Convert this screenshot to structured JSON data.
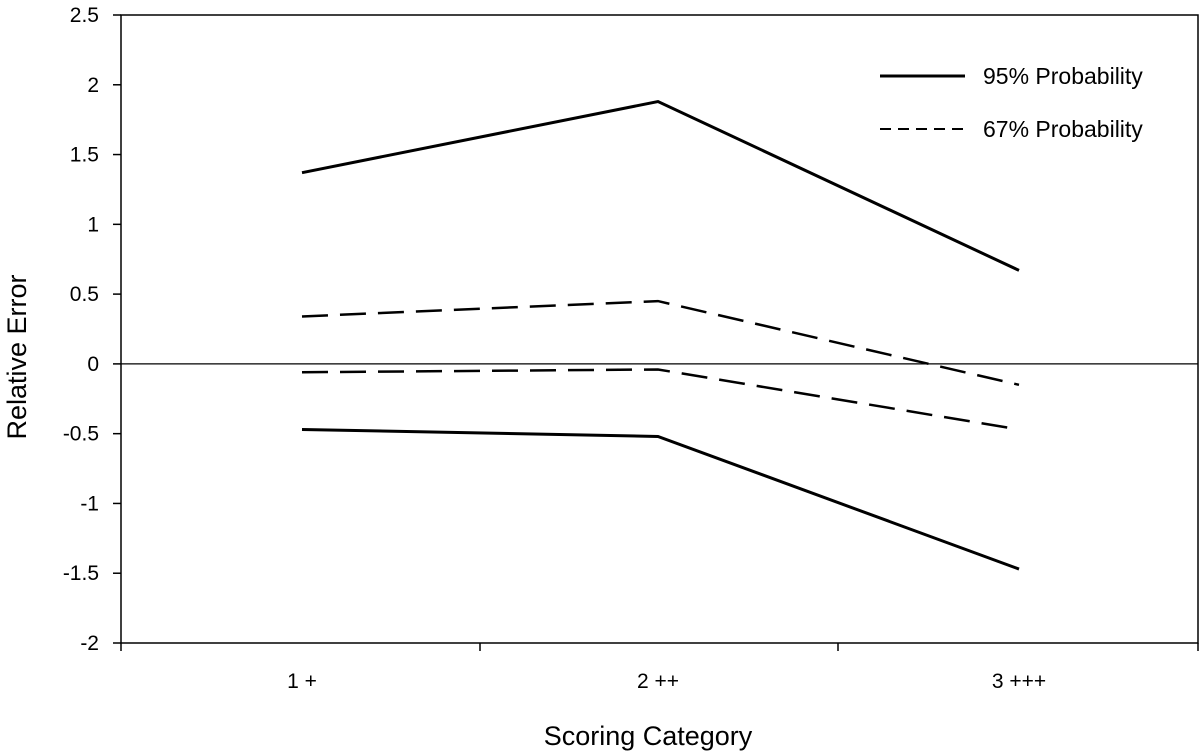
{
  "chart_data": {
    "type": "line",
    "title": "",
    "xlabel": "Scoring Category",
    "ylabel": "Relative Error",
    "categories": [
      "1 +",
      "2 ++",
      "3 +++"
    ],
    "ylim": [
      -2,
      2.5
    ],
    "yticks": [
      "2.5",
      "2",
      "1.5",
      "1",
      "0.5",
      "0",
      "-0.5",
      "-1",
      "-1.5",
      "-2"
    ],
    "grid": false,
    "legend_position": "top-right",
    "series": [
      {
        "name": "95% Probability",
        "style": "solid",
        "values": [
          1.37,
          1.88,
          0.67
        ]
      },
      {
        "name": "95% Probability",
        "style": "solid",
        "values": [
          -0.47,
          -0.52,
          -1.47
        ]
      },
      {
        "name": "67% Probability",
        "style": "dashed",
        "values": [
          0.34,
          0.45,
          -0.15
        ]
      },
      {
        "name": "67% Probability",
        "style": "dashed",
        "values": [
          -0.06,
          -0.04,
          -0.47
        ]
      }
    ],
    "legend": [
      {
        "name": "95% Probability",
        "style": "solid"
      },
      {
        "name": "67% Probability",
        "style": "dashed"
      }
    ],
    "line_color": "#000000"
  }
}
